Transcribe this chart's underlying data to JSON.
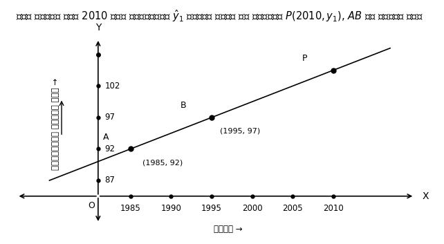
{
  "title_hindi": "मान लीजिए सन् 2010 में जनसंख्या ",
  "title_suffix": " करोड़ होगी जो बिन्दु P(2010, y₁), AB पर पड़ता है।",
  "xlabel_hindi": "वर्ष ",
  "ylabel_hindi": "जनसंख्या करोड़ में ",
  "point_A": [
    1985,
    92
  ],
  "point_B": [
    1995,
    97
  ],
  "point_P_x": 2010,
  "yticks": [
    87,
    92,
    97,
    102
  ],
  "xticks": [
    1985,
    1990,
    1995,
    2000,
    2005,
    2010
  ],
  "x_origin": 1981,
  "y_origin": 84.5,
  "xlim": [
    1970,
    2022
  ],
  "ylim": [
    80,
    111
  ],
  "line_color": "#000000",
  "point_color": "#000000",
  "background_color": "#ffffff",
  "font_color": "#000000",
  "title_fontsize": 10.5,
  "axis_label_fontsize": 8.5,
  "tick_fontsize": 8.5,
  "annotation_fontsize": 9
}
